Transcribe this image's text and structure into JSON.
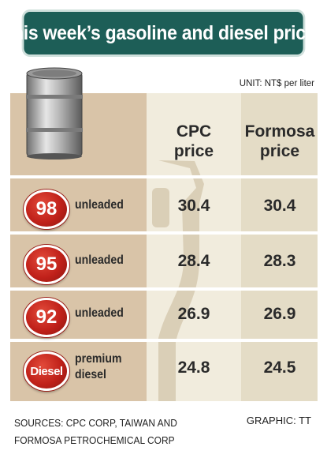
{
  "title": "This week’s gasoline and diesel prices",
  "unit": "UNIT: NT$ per liter",
  "columns": {
    "cpc": [
      "CPC",
      "price"
    ],
    "formosa": [
      "Formosa",
      "price"
    ]
  },
  "chart_data": {
    "type": "table",
    "title": "This week’s gasoline and diesel prices",
    "unit": "NT$ per liter",
    "columns": [
      "CPC price",
      "Formosa price"
    ],
    "rows": [
      {
        "badge": "98",
        "label": [
          "unleaded"
        ],
        "cpc": "30.4",
        "formosa": "30.4"
      },
      {
        "badge": "95",
        "label": [
          "unleaded"
        ],
        "cpc": "28.4",
        "formosa": "28.3"
      },
      {
        "badge": "92",
        "label": [
          "unleaded"
        ],
        "cpc": "26.9",
        "formosa": "26.9"
      },
      {
        "badge": "Diesel",
        "label": [
          "premium",
          "diesel"
        ],
        "cpc": "24.8",
        "formosa": "24.5"
      }
    ]
  },
  "footer": {
    "source_lines": [
      "SOURCES: CPC CORP, TAIWAN AND",
      "FORMOSA PETROCHEMICAL CORP"
    ],
    "credit": "GRAPHIC: TT"
  },
  "colors": {
    "title_bg": "#1d5e57",
    "badge_red": "#c0211a"
  },
  "icons": [
    "oil-barrel-icon",
    "fuel-pump-nozzle-icon"
  ]
}
